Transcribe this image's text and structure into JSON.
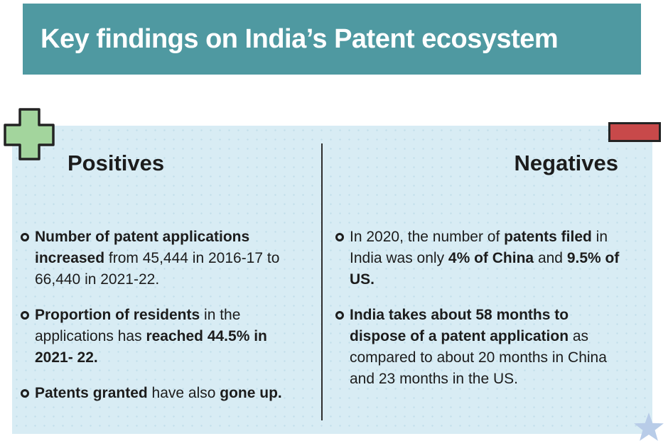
{
  "header": {
    "title": "Key findings on India’s Patent ecosystem"
  },
  "colors": {
    "header_bg": "#4f99a1",
    "panel_bg": "#d8ecf4",
    "plus_fill": "#a3d59d",
    "minus_fill": "#c8494a",
    "icon_stroke": "#232323",
    "star_fill": "#b8cce8",
    "text": "#1c1c1c"
  },
  "positives": {
    "heading": "Positives",
    "items": [
      {
        "segments": [
          {
            "text": "Number of patent applications increased",
            "bold": true
          },
          {
            "text": " from 45,444 in 2016-17 to 66,440 in 2021-22.",
            "bold": false
          }
        ]
      },
      {
        "segments": [
          {
            "text": "Proportion of residents",
            "bold": true
          },
          {
            "text": " in the applications has ",
            "bold": false
          },
          {
            "text": "reached 44.5% in 2021- 22.",
            "bold": true
          }
        ]
      },
      {
        "segments": [
          {
            "text": "Patents granted",
            "bold": true
          },
          {
            "text": " have also ",
            "bold": false
          },
          {
            "text": "gone up.",
            "bold": true
          }
        ]
      }
    ]
  },
  "negatives": {
    "heading": "Negatives",
    "items": [
      {
        "segments": [
          {
            "text": "In 2020, the number of ",
            "bold": false
          },
          {
            "text": "patents filed",
            "bold": true
          },
          {
            "text": " in India was only ",
            "bold": false
          },
          {
            "text": "4% of China",
            "bold": true
          },
          {
            "text": " and ",
            "bold": false
          },
          {
            "text": "9.5% of US.",
            "bold": true
          }
        ]
      },
      {
        "segments": [
          {
            "text": "India takes about 58 months to dispose of a patent application",
            "bold": true
          },
          {
            "text": " as compared to about 20 months in China and 23 months in the US.",
            "bold": false
          }
        ]
      }
    ]
  }
}
